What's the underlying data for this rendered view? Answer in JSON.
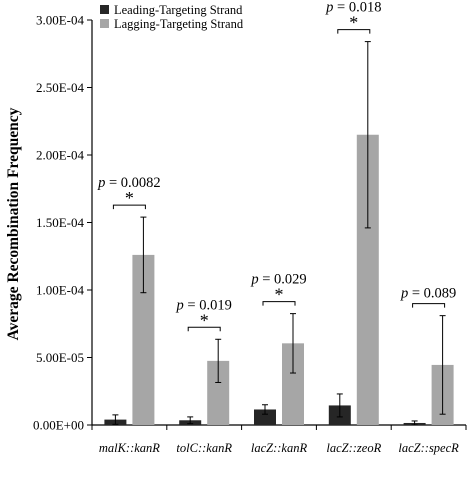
{
  "chart_data": {
    "type": "bar",
    "ylabel": "Average Recombination Frequency",
    "ylim": [
      0,
      0.0003
    ],
    "yticks": [
      0,
      5e-05,
      0.0001,
      0.00015,
      0.0002,
      0.00025,
      0.0003
    ],
    "ytick_labels": [
      "0.00E+00",
      "5.00E-05",
      "1.00E-04",
      "1.50E-04",
      "2.00E-04",
      "2.50E-04",
      "3.00E-04"
    ],
    "categories": [
      {
        "gene": "malK",
        "marker": "kanR"
      },
      {
        "gene": "tolC",
        "marker": "kanR"
      },
      {
        "gene": "lacZ",
        "marker": "kanR"
      },
      {
        "gene": "lacZ",
        "marker": "zeoR"
      },
      {
        "gene": "lacZ",
        "marker": "specR"
      }
    ],
    "category_separator": "::",
    "series": [
      {
        "name": "Leading-Targeting Strand",
        "color": "#262626",
        "values": [
          4e-06,
          3.5e-06,
          1.15e-05,
          1.45e-05,
          1.5e-06
        ],
        "errors": [
          3.5e-06,
          2.5e-06,
          3.5e-06,
          8.5e-06,
          1.5e-06
        ]
      },
      {
        "name": "Lagging-Targeting Strand",
        "color": "#a6a6a6",
        "values": [
          0.000126,
          4.75e-05,
          6.05e-05,
          0.000215,
          4.45e-05
        ],
        "errors": [
          2.8e-05,
          1.6e-05,
          2.2e-05,
          6.9e-05,
          3.65e-05
        ]
      }
    ],
    "annotations": [
      {
        "p_symbol": "p",
        "p_text": " = 0.0082",
        "star": "*"
      },
      {
        "p_symbol": "p",
        "p_text": " = 0.019",
        "star": "*"
      },
      {
        "p_symbol": "p",
        "p_text": " = 0.029",
        "star": "*"
      },
      {
        "p_symbol": "p",
        "p_text": " = 0.018",
        "star": "*"
      },
      {
        "p_symbol": "p",
        "p_text": " = 0.089",
        "star": ""
      }
    ],
    "legend_position": "top-left",
    "grid": false
  }
}
